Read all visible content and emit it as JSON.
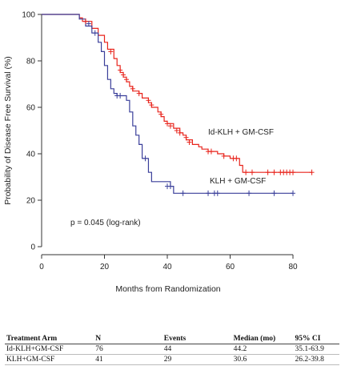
{
  "chart_data": {
    "type": "line",
    "subtype": "kaplan-meier step",
    "title": "",
    "xlabel": "Months from Randomization",
    "ylabel": "Probability of Disease Free Survival (%)",
    "xlim": [
      0,
      90
    ],
    "ylim": [
      0,
      100
    ],
    "x_ticks": [
      0,
      20,
      40,
      60,
      80
    ],
    "y_ticks": [
      0,
      20,
      40,
      60,
      80,
      100
    ],
    "grid": false,
    "legend": "none (inline series labels)",
    "annotation": "p = 0.045 (log-rank)",
    "series": [
      {
        "name": "Id-KLH + GM-CSF",
        "color": "#e8241c",
        "steps": [
          [
            0,
            100
          ],
          [
            12,
            98.5
          ],
          [
            13,
            97
          ],
          [
            16,
            94
          ],
          [
            18,
            91
          ],
          [
            20,
            88
          ],
          [
            21,
            85
          ],
          [
            23,
            81
          ],
          [
            24,
            78
          ],
          [
            25,
            75
          ],
          [
            26,
            73
          ],
          [
            27,
            71
          ],
          [
            28,
            69
          ],
          [
            29,
            67
          ],
          [
            31,
            66
          ],
          [
            32,
            64
          ],
          [
            34,
            62
          ],
          [
            35,
            60
          ],
          [
            37,
            58
          ],
          [
            38,
            56
          ],
          [
            39,
            54
          ],
          [
            40,
            53
          ],
          [
            42,
            51
          ],
          [
            44,
            49
          ],
          [
            45,
            48
          ],
          [
            46,
            46
          ],
          [
            48,
            44
          ],
          [
            50,
            43
          ],
          [
            51,
            42
          ],
          [
            53,
            41
          ],
          [
            56,
            40
          ],
          [
            58,
            39
          ],
          [
            60,
            38
          ],
          [
            63,
            35
          ],
          [
            64,
            32
          ],
          [
            86,
            32
          ]
        ],
        "censored": [
          [
            14,
            97
          ],
          [
            22,
            84
          ],
          [
            25,
            76
          ],
          [
            26,
            74
          ],
          [
            27,
            72
          ],
          [
            29,
            68
          ],
          [
            31,
            66
          ],
          [
            34,
            63
          ],
          [
            35,
            61
          ],
          [
            38,
            57
          ],
          [
            40,
            53
          ],
          [
            41,
            52
          ],
          [
            43,
            50
          ],
          [
            44,
            49
          ],
          [
            46,
            47
          ],
          [
            47,
            45
          ],
          [
            53,
            41
          ],
          [
            54,
            41
          ],
          [
            58,
            39
          ],
          [
            61,
            38
          ],
          [
            62,
            38
          ],
          [
            65,
            32
          ],
          [
            67,
            32
          ],
          [
            72,
            32
          ],
          [
            74,
            32
          ],
          [
            76,
            32
          ],
          [
            77,
            32
          ],
          [
            78,
            32
          ],
          [
            79,
            32
          ],
          [
            80,
            32
          ],
          [
            86,
            32
          ]
        ]
      },
      {
        "name": "KLH + GM-CSF",
        "color": "#3a3f9a",
        "steps": [
          [
            0,
            100
          ],
          [
            12,
            98
          ],
          [
            14,
            95
          ],
          [
            16,
            92
          ],
          [
            18,
            88
          ],
          [
            19,
            84
          ],
          [
            20,
            78
          ],
          [
            21,
            72
          ],
          [
            22,
            68
          ],
          [
            23,
            66
          ],
          [
            24,
            65
          ],
          [
            27,
            63
          ],
          [
            28,
            58
          ],
          [
            29,
            52
          ],
          [
            30,
            48
          ],
          [
            31,
            44
          ],
          [
            32,
            38
          ],
          [
            34,
            32
          ],
          [
            35,
            28
          ],
          [
            41,
            26
          ],
          [
            42,
            23
          ],
          [
            80,
            23
          ]
        ],
        "censored": [
          [
            15,
            96
          ],
          [
            17,
            92
          ],
          [
            24,
            65
          ],
          [
            25,
            65
          ],
          [
            33,
            38
          ],
          [
            40,
            26
          ],
          [
            41,
            26
          ],
          [
            45,
            23
          ],
          [
            53,
            23
          ],
          [
            55,
            23
          ],
          [
            56,
            23
          ],
          [
            66,
            23
          ],
          [
            74,
            23
          ],
          [
            80,
            23
          ]
        ]
      }
    ]
  },
  "labels": {
    "series_a": "Id-KLH + GM-CSF",
    "series_b": "KLH + GM-CSF",
    "pvalue": "p = 0.045 (log-rank)",
    "xlabel": "Months from Randomization",
    "ylabel": "Probability of Disease Free Survival (%)"
  },
  "table": {
    "headers": [
      "Treatment Arm",
      "N",
      "Events",
      "Median (mo)",
      "95% CI"
    ],
    "rows": [
      [
        "Id-KLH+GM-CSF",
        "76",
        "44",
        "44.2",
        "35.1-63.9"
      ],
      [
        "KLH+GM-CSF",
        "41",
        "29",
        "30.6",
        "26.2-39.8"
      ]
    ]
  }
}
